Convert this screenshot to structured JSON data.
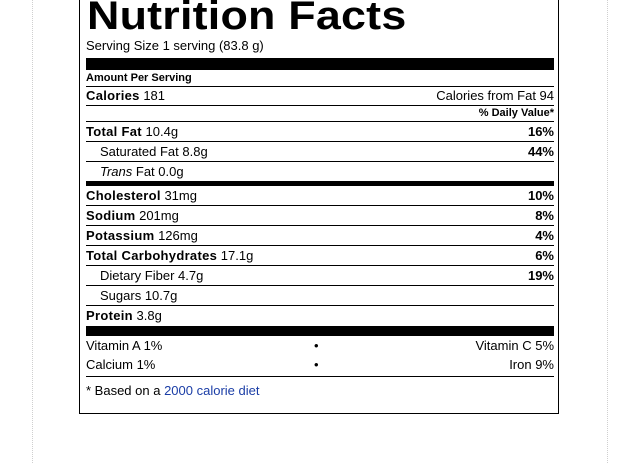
{
  "label": {
    "title": "Nutrition Facts",
    "serving": "Serving Size 1 serving (83.8 g)",
    "amount_per_serving": "Amount Per Serving",
    "calories": {
      "label": "Calories",
      "value": "181",
      "from_fat": "Calories from Fat 94"
    },
    "daily_value_header": "% Daily Value*",
    "total_fat": {
      "label": "Total Fat",
      "amount": "10.4g",
      "pct": "16%"
    },
    "saturated_fat": {
      "label": "Saturated Fat",
      "amount": "8.8g",
      "pct": "44%"
    },
    "trans_fat": {
      "label_italic": "Trans",
      "label_rest": " Fat",
      "amount": "0.0g"
    },
    "cholesterol": {
      "label": "Cholesterol",
      "amount": "31mg",
      "pct": "10%"
    },
    "sodium": {
      "label": "Sodium",
      "amount": "201mg",
      "pct": "8%"
    },
    "potassium": {
      "label": "Potassium",
      "amount": "126mg",
      "pct": "4%"
    },
    "total_carbs": {
      "label": "Total Carbohydrates",
      "amount": "17.1g",
      "pct": "6%"
    },
    "dietary_fiber": {
      "label": "Dietary Fiber",
      "amount": "4.7g",
      "pct": "19%"
    },
    "sugars": {
      "label": "Sugars",
      "amount": "10.7g"
    },
    "protein": {
      "label": "Protein",
      "amount": "3.8g"
    },
    "vitamins": [
      {
        "left": "Vitamin A 1%",
        "dot": "•",
        "right": "Vitamin C 5%"
      },
      {
        "left": "Calcium 1%",
        "dot": "•",
        "right": "Iron 9%"
      }
    ],
    "footnote": {
      "prefix": "* Based on a ",
      "link": "2000 calorie diet"
    }
  }
}
